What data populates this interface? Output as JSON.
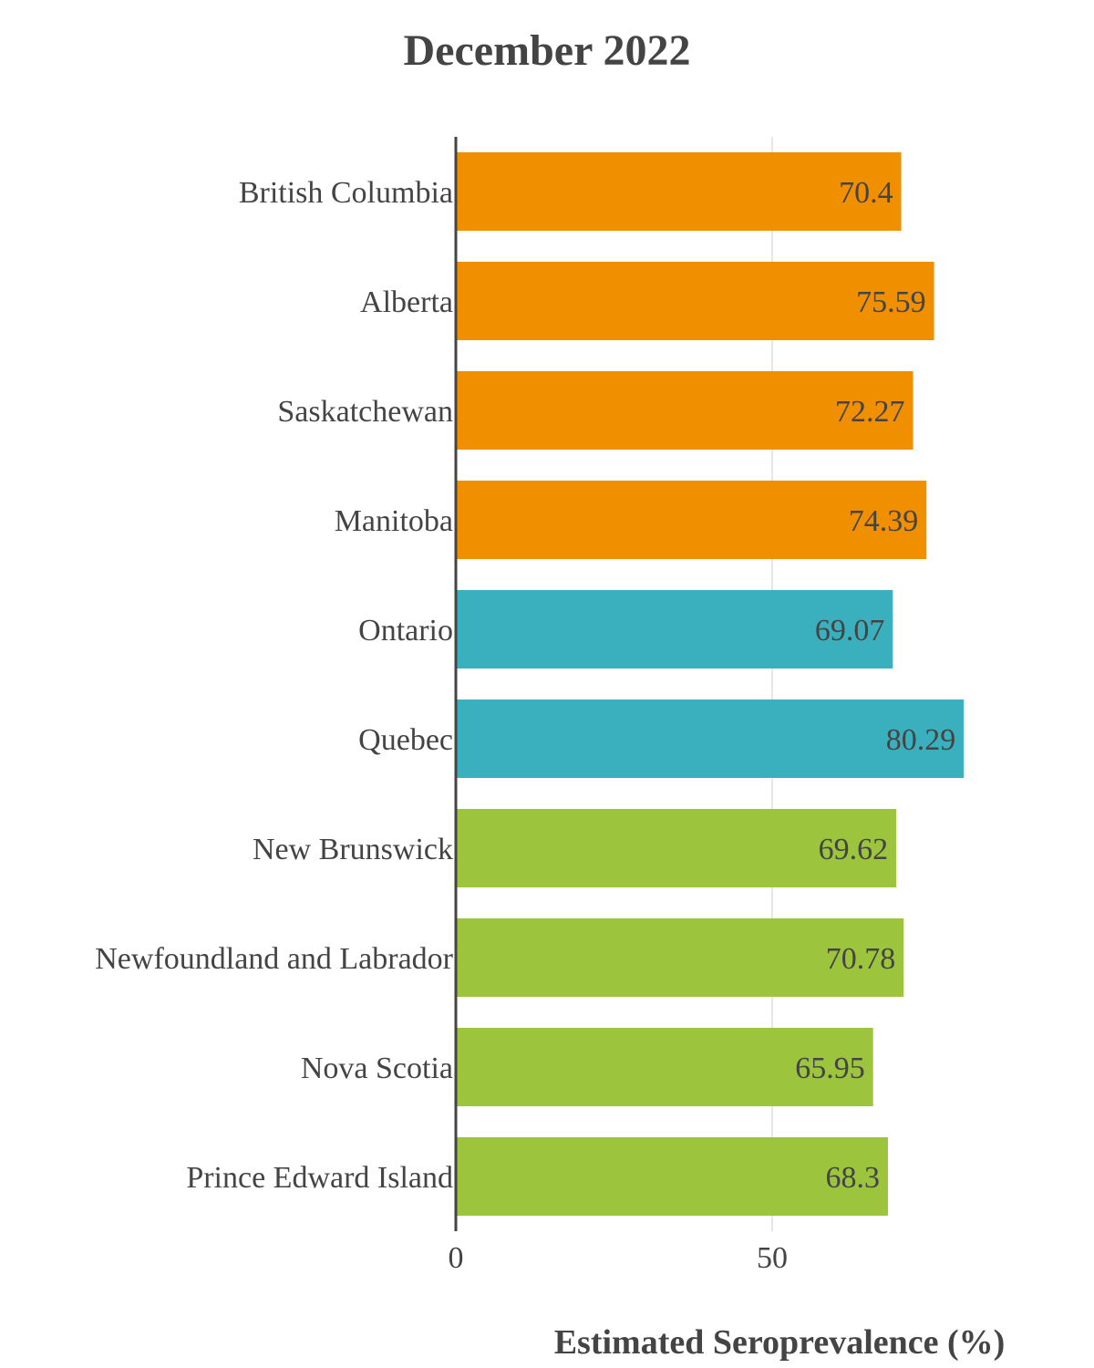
{
  "chart_data": {
    "type": "bar",
    "orientation": "horizontal",
    "title": "December 2022",
    "xlabel": "Estimated Seroprevalence (%)",
    "ylabel": "",
    "xlim": [
      0,
      82
    ],
    "xticks": [
      0,
      50
    ],
    "grid": true,
    "categories": [
      "British Columbia",
      "Alberta",
      "Saskatchewan",
      "Manitoba",
      "Ontario",
      "Quebec",
      "New Brunswick",
      "Newfoundland and Labrador",
      "Nova Scotia",
      "Prince Edward Island"
    ],
    "values": [
      70.4,
      75.59,
      72.27,
      74.39,
      69.07,
      80.29,
      69.62,
      70.78,
      65.95,
      68.3
    ],
    "value_labels": [
      "70.4",
      "75.59",
      "72.27",
      "74.39",
      "69.07",
      "80.29",
      "69.62",
      "70.78",
      "65.95",
      "68.3"
    ],
    "bar_colors": [
      "#F08F00",
      "#F08F00",
      "#F08F00",
      "#F08F00",
      "#3AAFBE",
      "#3AAFBE",
      "#9CC43D",
      "#9CC43D",
      "#9CC43D",
      "#9CC43D"
    ]
  }
}
